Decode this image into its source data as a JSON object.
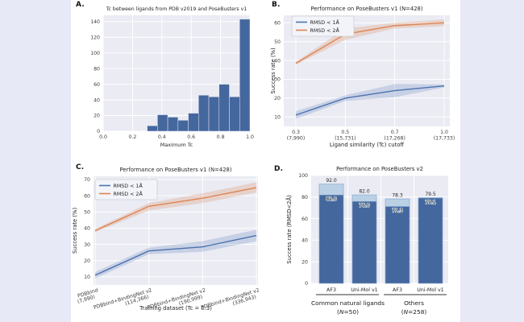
{
  "window": {
    "description": "Four-panel scientific figure on white card over lavender background"
  },
  "colors": {
    "page_bg": "#e7e9f6",
    "card_bg": "#ffffff",
    "plot_bg": "#eaebf3",
    "grid": "#ffffff",
    "blue": "#4c72b0",
    "orange": "#dd8452",
    "blue_band": "rgba(76,114,176,0.22)",
    "orange_band": "rgba(221,132,82,0.25)",
    "bar_dark": "#44679e",
    "bar_light": "#bad0e5",
    "bar_light_edge": "#85a9d0",
    "bar_dark_edge": "#9db8da",
    "tick_text": "#3d3d3d",
    "label_text": "#262626"
  },
  "panel_labels": {
    "a": "A.",
    "b": "B.",
    "c": "C.",
    "d": "D."
  },
  "chart_data": [
    {
      "id": "a",
      "type": "histogram",
      "title": "Tc between ligands from PDB v2019 and PoseBusters v1",
      "xlabel": "Maximum Tc",
      "xlim": [
        0.0,
        1.0
      ],
      "ylim": [
        0,
        148
      ],
      "xticks": [
        0.0,
        0.2,
        0.4,
        0.6,
        0.8,
        1.0
      ],
      "xtick_labels": [
        "0.0",
        "0.2",
        "0.4",
        "0.6",
        "0.8",
        "1.0"
      ],
      "yticks": [
        0,
        20,
        40,
        60,
        80,
        100,
        120,
        140
      ],
      "bin_start": 0.3,
      "bin_end": 1.0,
      "values": [
        7,
        21,
        18,
        14,
        23,
        46,
        44,
        60,
        44,
        143
      ]
    },
    {
      "id": "b",
      "type": "line",
      "title": "Performance on PoseBusters v1 (N=428)",
      "xlabel": "Ligand similarity (Tc) cutoff",
      "ylabel": "Success rate (%)",
      "ylim": [
        5,
        64
      ],
      "yticks": [
        10,
        20,
        30,
        40,
        50,
        60
      ],
      "x_tick_top": [
        "0.3",
        "0.5",
        "0.7",
        "1.0"
      ],
      "x_tick_bottom": [
        "(7,990)",
        "(15,731)",
        "(17,268)",
        "(17,733)"
      ],
      "legend_position": "upper left",
      "series": [
        {
          "name": "RMSD < 1Å",
          "color_key": "blue",
          "values": [
            11,
            20,
            24,
            26.5
          ],
          "band_low": [
            9,
            18.5,
            20.5,
            25.7
          ],
          "band_high": [
            13,
            21.5,
            27.5,
            27.3
          ]
        },
        {
          "name": "RMSD < 2Å",
          "color_key": "orange",
          "values": [
            38.5,
            54,
            58.5,
            60
          ],
          "band_low": [
            37.8,
            51,
            57,
            58.3
          ],
          "band_high": [
            39.3,
            57,
            60,
            61.7
          ]
        }
      ]
    },
    {
      "id": "c",
      "type": "line",
      "title": "Performance on PoseBusters v1 (N=428)",
      "xlabel": "Training dataset (Tc = 0.3)",
      "ylabel": "Success rate (%)",
      "ylim": [
        5,
        72
      ],
      "yticks": [
        10,
        20,
        30,
        40,
        50,
        60,
        70
      ],
      "x_categories": [
        {
          "line1": "PDBbind",
          "line2": "(7,990)"
        },
        {
          "line1": "PDBbind+BindingNet v2",
          "line2": "(114,366)"
        },
        {
          "line1": "PDBbind+BindingNet v2",
          "line2": "(190,999)"
        },
        {
          "line1": "PDBbind+BindingNet v2",
          "line2": "(336,943)"
        }
      ],
      "legend_position": "upper left",
      "series": [
        {
          "name": "RMSD < 1Å",
          "color_key": "blue",
          "values": [
            11,
            26,
            28.5,
            35.5
          ],
          "band_low": [
            9,
            24,
            25.5,
            32
          ],
          "band_high": [
            13,
            28,
            32,
            39
          ]
        },
        {
          "name": "RMSD < 2Å",
          "color_key": "orange",
          "values": [
            38.5,
            53.5,
            58.5,
            65
          ],
          "band_low": [
            37.5,
            51,
            55.5,
            62
          ],
          "band_high": [
            39.5,
            55.5,
            61.5,
            68.3
          ]
        }
      ]
    },
    {
      "id": "d",
      "type": "grouped_bar",
      "title": "Performance on PoseBusters v2",
      "ylabel": "Success rate (RMSD<2Å)",
      "ylim": [
        0,
        100
      ],
      "yticks": [
        0,
        20,
        40,
        60,
        80,
        100
      ],
      "bars": [
        {
          "model": "AF3",
          "light": 92.0,
          "dark": 82.0,
          "light_label": "92.0",
          "dark_label": "82.0"
        },
        {
          "model": "Uni-Mol v1",
          "light": 82.0,
          "dark": 76.0,
          "light_label": "82.0",
          "dark_label": "76.0"
        },
        {
          "model": "AF3",
          "light": 78.3,
          "dark": 71.3,
          "light_label": "78.3",
          "dark_label": "71.3"
        },
        {
          "model": "Uni-Mol v1",
          "light": 79.5,
          "dark": 79.1,
          "light_label": "79.5",
          "dark_label": "79.1"
        }
      ],
      "groups": [
        {
          "label": "Common natural ligands",
          "count": "(N=50)"
        },
        {
          "label": "Others",
          "count": "(N=258)"
        }
      ]
    }
  ]
}
